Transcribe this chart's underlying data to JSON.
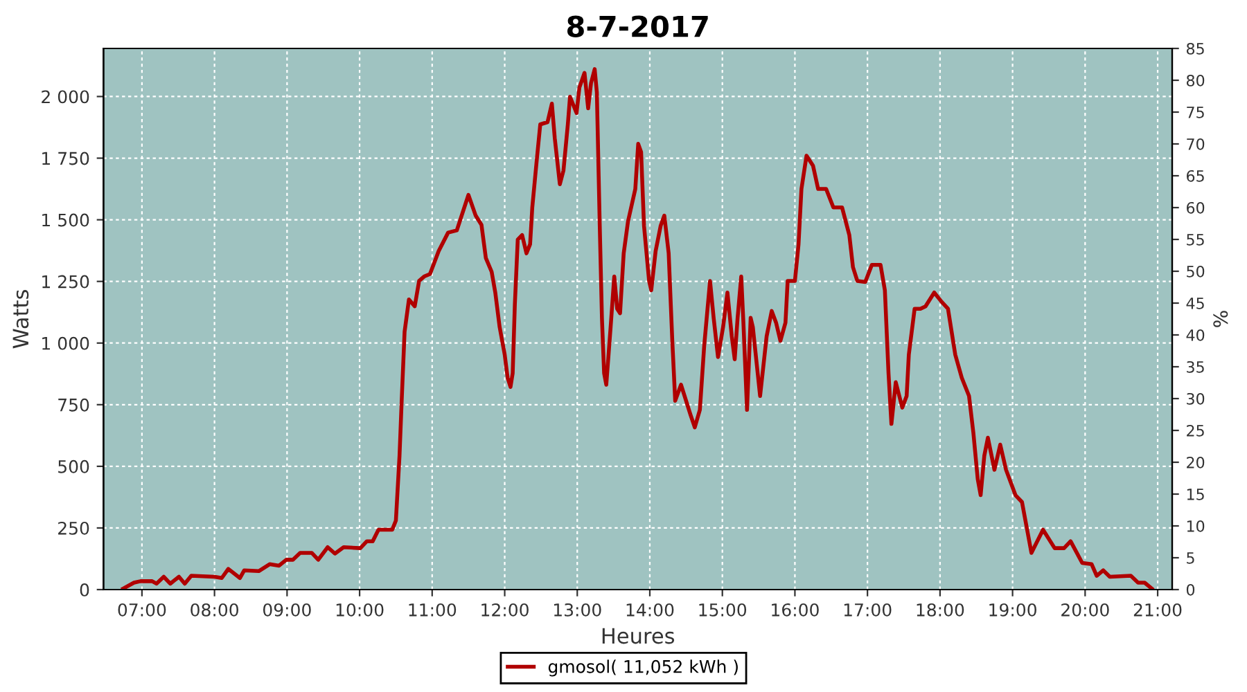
{
  "chart_data": {
    "type": "line",
    "title": "8-7-2017",
    "xlabel": "Heures",
    "ylabel": "Watts",
    "y2label": "%",
    "xlim": [
      6.47,
      21.2
    ],
    "xticks": [
      {
        "value": 7,
        "label": "07:00"
      },
      {
        "value": 8,
        "label": "08:00"
      },
      {
        "value": 9,
        "label": "09:00"
      },
      {
        "value": 10,
        "label": "10:00"
      },
      {
        "value": 11,
        "label": "11:00"
      },
      {
        "value": 12,
        "label": "12:00"
      },
      {
        "value": 13,
        "label": "13:00"
      },
      {
        "value": 14,
        "label": "14:00"
      },
      {
        "value": 15,
        "label": "15:00"
      },
      {
        "value": 16,
        "label": "16:00"
      },
      {
        "value": 17,
        "label": "17:00"
      },
      {
        "value": 18,
        "label": "18:00"
      },
      {
        "value": 19,
        "label": "19:00"
      },
      {
        "value": 20,
        "label": "20:00"
      },
      {
        "value": 21,
        "label": "21:00"
      }
    ],
    "ylim": [
      0,
      2195
    ],
    "yticks": [
      0,
      250,
      500,
      750,
      {
        "value": 1000,
        "label": "1 000"
      },
      {
        "value": 1250,
        "label": "1 250"
      },
      {
        "value": 1500,
        "label": "1 500"
      },
      {
        "value": 1750,
        "label": "1 750"
      },
      {
        "value": 2000,
        "label": "2 000"
      }
    ],
    "y2lim": [
      0,
      85
    ],
    "y2ticks": [
      0,
      5,
      10,
      15,
      20,
      25,
      30,
      35,
      40,
      45,
      50,
      55,
      60,
      65,
      70,
      75,
      80,
      85
    ],
    "grid": true,
    "legend": "bottom",
    "line_style": "solid",
    "marker": "none",
    "series": [
      {
        "name": "gmosol( 11,052 kWh )",
        "color": "#b00000",
        "x": [
          6.74,
          6.89,
          6.98,
          7.14,
          7.2,
          7.3,
          7.39,
          7.51,
          7.59,
          7.68,
          8.0,
          8.1,
          8.19,
          8.35,
          8.41,
          8.61,
          8.76,
          8.89,
          8.99,
          9.08,
          9.18,
          9.34,
          9.43,
          9.56,
          9.66,
          9.78,
          10.01,
          10.1,
          10.18,
          10.26,
          10.45,
          10.5,
          10.55,
          10.58,
          10.62,
          10.68,
          10.76,
          10.82,
          10.89,
          10.97,
          11.09,
          11.22,
          11.34,
          11.5,
          11.6,
          11.68,
          11.74,
          11.82,
          11.87,
          11.93,
          12.0,
          12.04,
          12.08,
          12.11,
          12.14,
          12.18,
          12.24,
          12.3,
          12.35,
          12.38,
          12.44,
          12.49,
          12.59,
          12.65,
          12.69,
          12.76,
          12.81,
          12.87,
          12.9,
          12.99,
          13.03,
          13.1,
          13.15,
          13.19,
          13.24,
          13.27,
          13.31,
          13.34,
          13.37,
          13.4,
          13.46,
          13.51,
          13.55,
          13.59,
          13.64,
          13.7,
          13.8,
          13.84,
          13.88,
          13.92,
          13.99,
          14.02,
          14.08,
          14.15,
          14.2,
          14.26,
          14.31,
          14.35,
          14.43,
          14.56,
          14.62,
          14.69,
          14.75,
          14.83,
          14.88,
          14.94,
          15.01,
          15.07,
          15.13,
          15.17,
          15.21,
          15.26,
          15.29,
          15.34,
          15.39,
          15.42,
          15.52,
          15.61,
          15.68,
          15.74,
          15.8,
          15.87,
          15.9,
          16.0,
          16.05,
          16.09,
          16.16,
          16.25,
          16.32,
          16.43,
          16.53,
          16.65,
          16.75,
          16.8,
          16.86,
          16.97,
          17.06,
          17.18,
          17.24,
          17.29,
          17.33,
          17.39,
          17.48,
          17.54,
          17.57,
          17.65,
          17.73,
          17.8,
          17.92,
          18.02,
          18.11,
          18.21,
          18.3,
          18.4,
          18.46,
          18.52,
          18.56,
          18.61,
          18.66,
          18.75,
          18.83,
          18.91,
          19.04,
          19.13,
          19.26,
          19.42,
          19.58,
          19.71,
          19.8,
          19.96,
          20.09,
          20.16,
          20.25,
          20.34,
          20.63,
          20.73,
          20.82,
          20.92
        ],
        "values": [
          4,
          28,
          34,
          34,
          24,
          52,
          24,
          52,
          24,
          56,
          52,
          47,
          84,
          47,
          78,
          75,
          103,
          97,
          121,
          121,
          149,
          149,
          121,
          172,
          146,
          172,
          168,
          196,
          196,
          243,
          243,
          280,
          542,
          766,
          1046,
          1177,
          1149,
          1252,
          1270,
          1280,
          1373,
          1448,
          1457,
          1601,
          1517,
          1479,
          1345,
          1289,
          1205,
          1065,
          953,
          859,
          822,
          878,
          1158,
          1420,
          1438,
          1364,
          1401,
          1550,
          1737,
          1887,
          1896,
          1971,
          1831,
          1644,
          1700,
          1887,
          1999,
          1933,
          2037,
          2096,
          1952,
          2055,
          2111,
          2017,
          1476,
          1102,
          878,
          831,
          1065,
          1270,
          1139,
          1121,
          1364,
          1494,
          1625,
          1808,
          1775,
          1476,
          1252,
          1214,
          1373,
          1476,
          1517,
          1364,
          1009,
          766,
          831,
          710,
          658,
          729,
          990,
          1252,
          1102,
          943,
          1065,
          1205,
          1027,
          934,
          1102,
          1270,
          1083,
          729,
          1102,
          1065,
          785,
          1027,
          1130,
          1083,
          1009,
          1083,
          1252,
          1252,
          1401,
          1625,
          1760,
          1719,
          1625,
          1625,
          1550,
          1550,
          1438,
          1308,
          1252,
          1248,
          1317,
          1317,
          1214,
          878,
          672,
          841,
          738,
          785,
          953,
          1139,
          1139,
          1149,
          1205,
          1168,
          1139,
          953,
          859,
          785,
          635,
          448,
          383,
          542,
          616,
          486,
          588,
          486,
          383,
          355,
          149,
          243,
          168,
          168,
          196,
          108,
          103,
          56,
          78,
          52,
          56,
          28,
          28,
          4
        ]
      }
    ]
  }
}
